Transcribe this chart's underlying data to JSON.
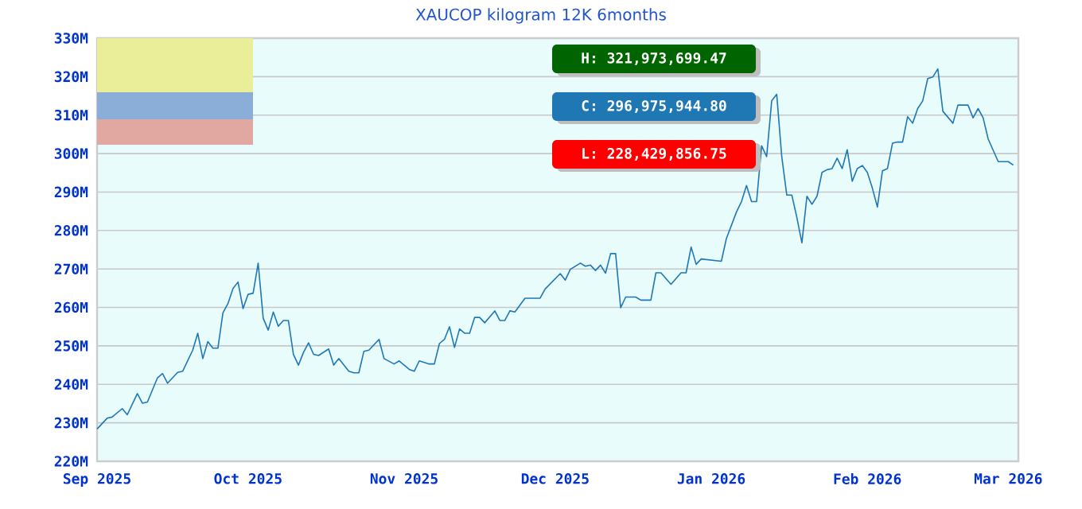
{
  "chart_data": {
    "type": "line",
    "title": "XAUCOP kilogram 12K 6months",
    "annotations": [
      "H: 321,973,699.47",
      "C: 296,975,944.80",
      "L: 228,429,856.75"
    ],
    "xlim": [
      "2025-09-01",
      "2026-03-03"
    ],
    "xticks": [
      {
        "value": "2025-09-01",
        "label": "Sep 2025"
      },
      {
        "value": "2025-10-01",
        "label": "Oct 2025"
      },
      {
        "value": "2025-11-01",
        "label": "Nov 2025"
      },
      {
        "value": "2025-12-01",
        "label": "Dec 2025"
      },
      {
        "value": "2026-01-01",
        "label": "Jan 2026"
      },
      {
        "value": "2026-02-01",
        "label": "Feb 2026"
      },
      {
        "value": "2026-03-01",
        "label": "Mar 2026"
      }
    ],
    "ylim": [
      220,
      330
    ],
    "yticks": [
      {
        "value": 220,
        "label": "220M"
      },
      {
        "value": 230,
        "label": "230M"
      },
      {
        "value": 240,
        "label": "240M"
      },
      {
        "value": 250,
        "label": "250M"
      },
      {
        "value": 260,
        "label": "260M"
      },
      {
        "value": 270,
        "label": "270M"
      },
      {
        "value": 280,
        "label": "280M"
      },
      {
        "value": 290,
        "label": "290M"
      },
      {
        "value": 300,
        "label": "300M"
      },
      {
        "value": 310,
        "label": "310M"
      },
      {
        "value": 320,
        "label": "320M"
      },
      {
        "value": 330,
        "label": "330M"
      }
    ],
    "grid": "y",
    "marker": "none",
    "line_style": "solid",
    "series": [
      {
        "color": "#1f77b4",
        "x": [
          "2025-09-01",
          "2025-09-03",
          "2025-09-04",
          "2025-09-06",
          "2025-09-07",
          "2025-09-09",
          "2025-09-10",
          "2025-09-11",
          "2025-09-13",
          "2025-09-14",
          "2025-09-15",
          "2025-09-17",
          "2025-09-18",
          "2025-09-20",
          "2025-09-21",
          "2025-09-22",
          "2025-09-23",
          "2025-09-24",
          "2025-09-25",
          "2025-09-26",
          "2025-09-27",
          "2025-09-28",
          "2025-09-29",
          "2025-09-30",
          "2025-10-01",
          "2025-10-02",
          "2025-10-03",
          "2025-10-04",
          "2025-10-05",
          "2025-10-06",
          "2025-10-07",
          "2025-10-08",
          "2025-10-09",
          "2025-10-10",
          "2025-10-11",
          "2025-10-12",
          "2025-10-13",
          "2025-10-14",
          "2025-10-15",
          "2025-10-17",
          "2025-10-18",
          "2025-10-19",
          "2025-10-21",
          "2025-10-22",
          "2025-10-23",
          "2025-10-24",
          "2025-10-25",
          "2025-10-27",
          "2025-10-28",
          "2025-10-30",
          "2025-10-31",
          "2025-11-02",
          "2025-11-03",
          "2025-11-04",
          "2025-11-06",
          "2025-11-07",
          "2025-11-08",
          "2025-11-09",
          "2025-11-10",
          "2025-11-11",
          "2025-11-12",
          "2025-11-13",
          "2025-11-14",
          "2025-11-15",
          "2025-11-16",
          "2025-11-17",
          "2025-11-19",
          "2025-11-20",
          "2025-11-21",
          "2025-11-22",
          "2025-11-23",
          "2025-11-25",
          "2025-11-28",
          "2025-11-29",
          "2025-12-02",
          "2025-12-03",
          "2025-12-04",
          "2025-12-06",
          "2025-12-07",
          "2025-12-08",
          "2025-12-09",
          "2025-12-10",
          "2025-12-11",
          "2025-12-12",
          "2025-12-13",
          "2025-12-14",
          "2025-12-15",
          "2025-12-17",
          "2025-12-18",
          "2025-12-20",
          "2025-12-21",
          "2025-12-22",
          "2025-12-24",
          "2025-12-26",
          "2025-12-27",
          "2025-12-28",
          "2025-12-29",
          "2025-12-30",
          "2026-01-01",
          "2026-01-03",
          "2026-01-04",
          "2026-01-06",
          "2026-01-07",
          "2026-01-08",
          "2026-01-09",
          "2026-01-10",
          "2026-01-11",
          "2026-01-12",
          "2026-01-13",
          "2026-01-14",
          "2026-01-15",
          "2026-01-16",
          "2026-01-17",
          "2026-01-18",
          "2026-01-19",
          "2026-01-20",
          "2026-01-21",
          "2026-01-22",
          "2026-01-23",
          "2026-01-24",
          "2026-01-25",
          "2026-01-26",
          "2026-01-27",
          "2026-01-28",
          "2026-01-29",
          "2026-01-30",
          "2026-01-31",
          "2026-02-01",
          "2026-02-02",
          "2026-02-03",
          "2026-02-04",
          "2026-02-05",
          "2026-02-06",
          "2026-02-07",
          "2026-02-08",
          "2026-02-09",
          "2026-02-10",
          "2026-02-11",
          "2026-02-12",
          "2026-02-13",
          "2026-02-14",
          "2026-02-15",
          "2026-02-16",
          "2026-02-18",
          "2026-02-19",
          "2026-02-21",
          "2026-02-22",
          "2026-02-23",
          "2026-02-24",
          "2026-02-25",
          "2026-02-27",
          "2026-03-01",
          "2026-03-02"
        ],
        "values": [
          228.4,
          231.2,
          231.5,
          233.7,
          232.1,
          237.6,
          235.1,
          235.4,
          241.7,
          242.8,
          240.3,
          243.1,
          243.4,
          248.9,
          253.3,
          246.7,
          251.1,
          249.4,
          249.4,
          258.6,
          261.0,
          264.9,
          266.6,
          259.7,
          263.4,
          263.7,
          271.5,
          257.2,
          254.1,
          258.8,
          255.1,
          256.6,
          256.6,
          247.8,
          245.0,
          248.3,
          250.8,
          247.8,
          247.5,
          249.2,
          245.0,
          246.7,
          243.4,
          243.0,
          243.0,
          248.6,
          248.9,
          251.7,
          246.7,
          245.3,
          246.1,
          243.9,
          243.4,
          246.1,
          245.3,
          245.3,
          250.6,
          251.7,
          255.0,
          249.6,
          254.4,
          253.3,
          253.3,
          257.4,
          257.4,
          256.0,
          259.1,
          256.6,
          256.6,
          259.1,
          258.8,
          262.4,
          262.4,
          264.8,
          268.8,
          267.1,
          269.9,
          271.5,
          270.7,
          271.0,
          269.6,
          271.0,
          268.9,
          274.0,
          274.0,
          259.9,
          262.7,
          262.7,
          261.9,
          261.9,
          269.0,
          269.0,
          266.0,
          269.0,
          269.0,
          275.7,
          271.2,
          272.6,
          272.3,
          272.0,
          277.9,
          284.8,
          287.5,
          291.7,
          287.5,
          287.5,
          302.0,
          299.2,
          313.7,
          315.4,
          299.2,
          289.2,
          289.2,
          283.4,
          276.8,
          288.9,
          286.8,
          288.9,
          295.1,
          295.8,
          296.1,
          298.8,
          296.1,
          301.0,
          292.8,
          296.1,
          296.9,
          295.1,
          291.0,
          286.1,
          295.5,
          296.1,
          302.7,
          303.0,
          303.0,
          309.6,
          307.9,
          311.7,
          313.7,
          319.5,
          319.9,
          322.0,
          311.0,
          307.9,
          312.6,
          312.6,
          309.3,
          311.7,
          309.3,
          303.8,
          297.9,
          297.9,
          297.0
        ]
      }
    ]
  }
}
